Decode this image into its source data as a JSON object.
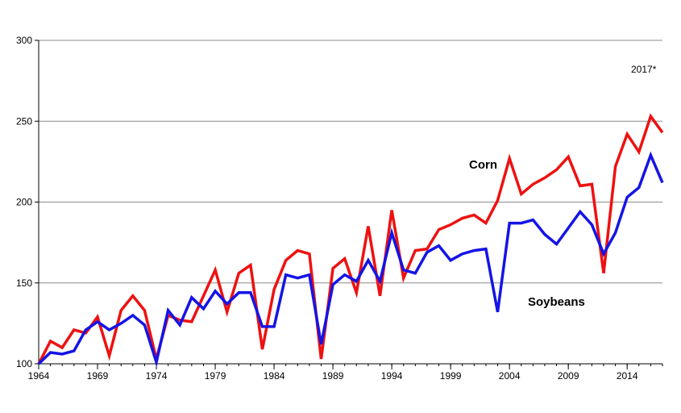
{
  "chart_data": {
    "type": "line",
    "annotation": "2017*",
    "ylim": [
      100,
      300
    ],
    "yticks": [
      100,
      150,
      200,
      250,
      300
    ],
    "xticks": [
      1964,
      1969,
      1974,
      1979,
      1984,
      1989,
      1994,
      1999,
      2004,
      2009,
      2014
    ],
    "x": [
      1964,
      1965,
      1966,
      1967,
      1968,
      1969,
      1970,
      1971,
      1972,
      1973,
      1974,
      1975,
      1976,
      1977,
      1978,
      1979,
      1980,
      1981,
      1982,
      1983,
      1984,
      1985,
      1986,
      1987,
      1988,
      1989,
      1990,
      1991,
      1992,
      1993,
      1994,
      1995,
      1996,
      1997,
      1998,
      1999,
      2000,
      2001,
      2002,
      2003,
      2004,
      2005,
      2006,
      2007,
      2008,
      2009,
      2010,
      2011,
      2012,
      2013,
      2014,
      2015,
      2016,
      2017
    ],
    "grid": true,
    "series": [
      {
        "name": "Corn",
        "color": "#ee1111",
        "values": [
          100,
          114,
          110,
          121,
          119,
          129,
          105,
          133,
          142,
          133,
          103,
          130,
          127,
          126,
          142,
          158,
          132,
          156,
          161,
          109,
          146,
          164,
          170,
          168,
          103,
          159,
          165,
          144,
          185,
          142,
          195,
          153,
          170,
          171,
          183,
          186,
          190,
          192,
          187,
          201,
          227,
          205,
          211,
          215,
          220,
          228,
          210,
          211,
          156,
          222,
          242,
          231,
          253,
          243
        ]
      },
      {
        "name": "Soybeans",
        "color": "#1414e6",
        "values": [
          100,
          107,
          106,
          108,
          121,
          126,
          121,
          125,
          130,
          124,
          101,
          133,
          124,
          141,
          134,
          145,
          137,
          144,
          144,
          123,
          123,
          155,
          153,
          155,
          112,
          149,
          155,
          151,
          164,
          151,
          181,
          158,
          156,
          169,
          173,
          164,
          168,
          170,
          171,
          132,
          187,
          187,
          189,
          180,
          174,
          184,
          194,
          186,
          168,
          181,
          203,
          209,
          229,
          212
        ]
      }
    ]
  }
}
